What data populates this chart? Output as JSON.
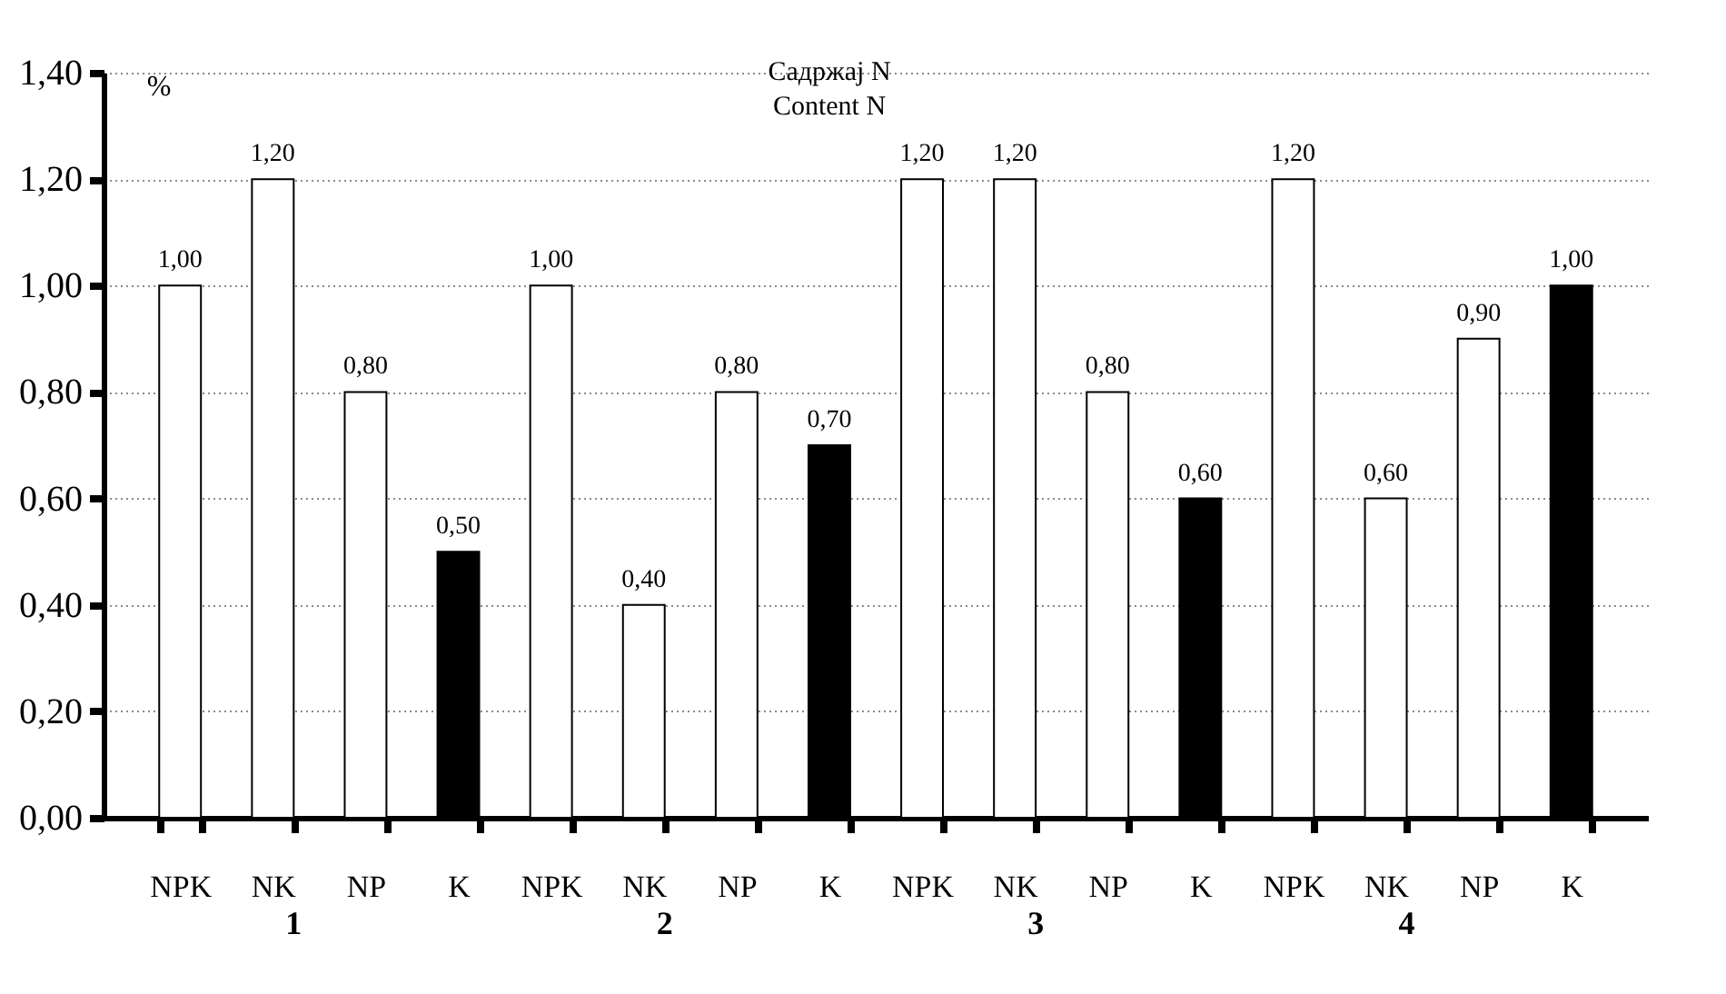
{
  "chart_data": {
    "type": "bar",
    "title": "Садржај N",
    "subtitle": "Content N",
    "ylabel": "%",
    "categories": [
      "NPK",
      "NK",
      "NP",
      "K",
      "NPK",
      "NK",
      "NP",
      "K",
      "NPK",
      "NK",
      "NP",
      "K",
      "NPK",
      "NK",
      "NP",
      "K"
    ],
    "values": [
      1.0,
      1.2,
      0.8,
      0.5,
      1.0,
      0.4,
      0.8,
      0.7,
      1.2,
      1.2,
      0.8,
      0.6,
      1.2,
      0.6,
      0.9,
      1.0
    ],
    "colors": [
      "#ffffff",
      "#ffffff",
      "#ffffff",
      "#000000",
      "#ffffff",
      "#ffffff",
      "#ffffff",
      "#000000",
      "#ffffff",
      "#ffffff",
      "#ffffff",
      "#000000",
      "#ffffff",
      "#ffffff",
      "#ffffff",
      "#000000"
    ],
    "value_labels": [
      "1,00",
      "1,20",
      "0,80",
      "0,50",
      "1,00",
      "0,40",
      "0,80",
      "0,70",
      "1,20",
      "1,20",
      "0,80",
      "0,60",
      "1,20",
      "0,60",
      "0,90",
      "1,00"
    ],
    "annotations": [
      "1",
      "2",
      "3",
      "4"
    ],
    "ylim": [
      0,
      1.4
    ],
    "yticks": [
      {
        "value": 0,
        "label": "0,00"
      },
      {
        "value": 0.2,
        "label": "0,20"
      },
      {
        "value": 0.4,
        "label": "0,40"
      },
      {
        "value": 0.6,
        "label": "0,60"
      },
      {
        "value": 0.8,
        "label": "0,80"
      },
      {
        "value": 1.0,
        "label": "1,00"
      },
      {
        "value": 1.2,
        "label": "1,20"
      },
      {
        "value": 1.4,
        "label": "1,40"
      }
    ],
    "grid": "y"
  }
}
